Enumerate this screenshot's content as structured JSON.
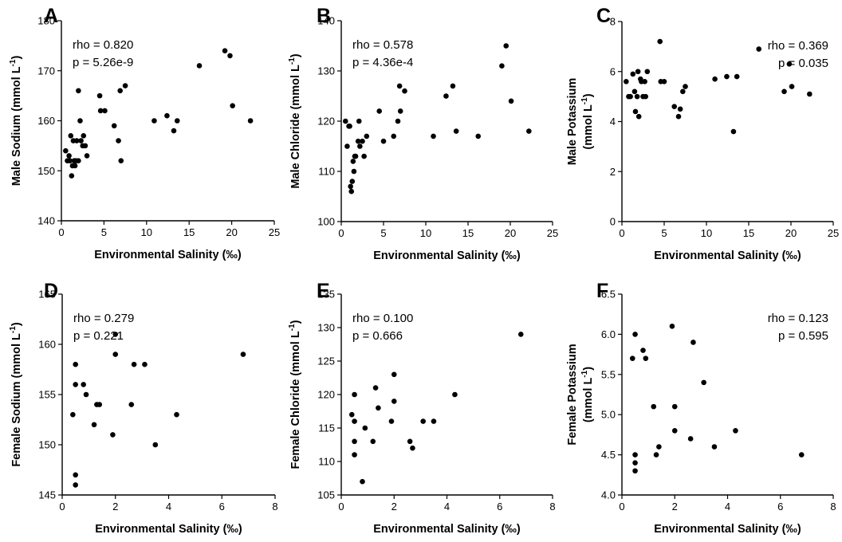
{
  "chart_data": [
    {
      "type": "scatter",
      "panel": "A",
      "xlabel": "Environmental Salinity (‰)",
      "ylabel": "Male Sodium (mmol L",
      "ylabel_sup": "-1",
      "ylabel_close": ")",
      "xlim": [
        0,
        25
      ],
      "ylim": [
        140,
        180
      ],
      "xticks": [
        0,
        5,
        10,
        15,
        20,
        25
      ],
      "yticks": [
        140,
        150,
        160,
        170,
        180
      ],
      "stats": [
        "rho = 0.820",
        "p = 5.26e-9"
      ],
      "stats_position": "top-left",
      "points": [
        [
          0.5,
          154
        ],
        [
          0.7,
          152
        ],
        [
          0.9,
          153
        ],
        [
          1.0,
          152
        ],
        [
          1.1,
          157
        ],
        [
          1.2,
          149
        ],
        [
          1.3,
          151
        ],
        [
          1.4,
          156
        ],
        [
          1.5,
          152
        ],
        [
          1.6,
          151
        ],
        [
          1.7,
          152
        ],
        [
          1.8,
          156
        ],
        [
          2.0,
          166
        ],
        [
          2.0,
          152
        ],
        [
          2.2,
          160
        ],
        [
          2.3,
          156
        ],
        [
          2.5,
          155
        ],
        [
          2.6,
          157
        ],
        [
          2.8,
          155
        ],
        [
          3.0,
          153
        ],
        [
          4.5,
          165
        ],
        [
          4.6,
          162
        ],
        [
          5.1,
          162
        ],
        [
          6.2,
          159
        ],
        [
          6.7,
          156
        ],
        [
          6.9,
          166
        ],
        [
          7.0,
          152
        ],
        [
          7.5,
          167
        ],
        [
          10.9,
          160
        ],
        [
          12.4,
          161
        ],
        [
          13.2,
          158
        ],
        [
          13.6,
          160
        ],
        [
          16.2,
          171
        ],
        [
          19.2,
          174
        ],
        [
          19.8,
          173
        ],
        [
          20.1,
          163
        ],
        [
          22.2,
          160
        ]
      ]
    },
    {
      "type": "scatter",
      "panel": "B",
      "xlabel": "Environmental Salinity (‰)",
      "ylabel": "Male Chloride (mmol L",
      "ylabel_sup": "-1",
      "ylabel_close": ")",
      "xlim": [
        0,
        25
      ],
      "ylim": [
        100,
        140
      ],
      "xticks": [
        0,
        5,
        10,
        15,
        20,
        25
      ],
      "yticks": [
        100,
        110,
        120,
        130,
        140
      ],
      "stats": [
        "rho = 0.578",
        "p = 4.36e-4"
      ],
      "stats_position": "top-left",
      "points": [
        [
          0.5,
          120
        ],
        [
          0.7,
          115
        ],
        [
          0.9,
          119
        ],
        [
          1.0,
          119
        ],
        [
          1.1,
          107
        ],
        [
          1.2,
          106
        ],
        [
          1.3,
          108
        ],
        [
          1.4,
          112
        ],
        [
          1.5,
          110
        ],
        [
          1.6,
          113
        ],
        [
          1.7,
          113
        ],
        [
          2.0,
          116
        ],
        [
          2.1,
          120
        ],
        [
          2.2,
          115
        ],
        [
          2.5,
          116
        ],
        [
          2.7,
          113
        ],
        [
          3.0,
          117
        ],
        [
          4.5,
          122
        ],
        [
          5.0,
          116
        ],
        [
          6.2,
          117
        ],
        [
          6.7,
          120
        ],
        [
          6.9,
          127
        ],
        [
          7.0,
          122
        ],
        [
          7.5,
          126
        ],
        [
          10.9,
          117
        ],
        [
          12.4,
          125
        ],
        [
          13.2,
          127
        ],
        [
          13.6,
          118
        ],
        [
          16.2,
          117
        ],
        [
          19.0,
          131
        ],
        [
          19.5,
          135
        ],
        [
          20.1,
          124
        ],
        [
          22.2,
          118
        ]
      ]
    },
    {
      "type": "scatter",
      "panel": "C",
      "xlabel": "Environmental Salinity (‰)",
      "ylabel": "Male Potassium",
      "ylabel2": "(mmol L",
      "ylabel_sup": "-1",
      "ylabel_close": ")",
      "xlim": [
        0,
        25
      ],
      "ylim": [
        0,
        8
      ],
      "xticks": [
        0,
        5,
        10,
        15,
        20,
        25
      ],
      "yticks": [
        0,
        2,
        4,
        6,
        8
      ],
      "stats": [
        "rho = 0.369",
        "p = 0.035"
      ],
      "stats_position": "top-right",
      "points": [
        [
          0.5,
          5.6
        ],
        [
          0.8,
          5.0
        ],
        [
          1.0,
          5.0
        ],
        [
          1.3,
          5.9
        ],
        [
          1.5,
          5.2
        ],
        [
          1.6,
          4.4
        ],
        [
          1.8,
          5.0
        ],
        [
          1.9,
          6.0
        ],
        [
          2.0,
          4.2
        ],
        [
          2.2,
          5.7
        ],
        [
          2.3,
          5.6
        ],
        [
          2.5,
          5.0
        ],
        [
          2.7,
          5.6
        ],
        [
          2.8,
          5.0
        ],
        [
          3.0,
          6.0
        ],
        [
          4.5,
          7.2
        ],
        [
          4.6,
          5.6
        ],
        [
          5.0,
          5.6
        ],
        [
          6.2,
          4.6
        ],
        [
          6.7,
          4.2
        ],
        [
          6.9,
          4.5
        ],
        [
          7.2,
          5.2
        ],
        [
          7.5,
          5.4
        ],
        [
          11.0,
          5.7
        ],
        [
          12.4,
          5.8
        ],
        [
          13.2,
          3.6
        ],
        [
          13.6,
          5.8
        ],
        [
          16.2,
          6.9
        ],
        [
          19.2,
          5.2
        ],
        [
          19.8,
          6.3
        ],
        [
          20.1,
          5.4
        ],
        [
          22.2,
          5.1
        ]
      ]
    },
    {
      "type": "scatter",
      "panel": "D",
      "xlabel": "Environmental Salinity (‰)",
      "ylabel": "Female Sodium (mmol L",
      "ylabel_sup": "-1",
      "ylabel_close": ")",
      "xlim": [
        0,
        8
      ],
      "ylim": [
        145,
        165
      ],
      "xticks": [
        0,
        2,
        4,
        6,
        8
      ],
      "yticks": [
        145,
        150,
        155,
        160,
        165
      ],
      "stats": [
        "rho = 0.279",
        "p = 0.221"
      ],
      "stats_position": "top-left",
      "points": [
        [
          0.4,
          153
        ],
        [
          0.5,
          158
        ],
        [
          0.5,
          156
        ],
        [
          0.5,
          147
        ],
        [
          0.5,
          146
        ],
        [
          0.8,
          156
        ],
        [
          0.9,
          155
        ],
        [
          1.2,
          152
        ],
        [
          1.3,
          154
        ],
        [
          1.4,
          154
        ],
        [
          1.9,
          151
        ],
        [
          2.0,
          161
        ],
        [
          2.0,
          159
        ],
        [
          2.6,
          154
        ],
        [
          2.7,
          158
        ],
        [
          3.1,
          158
        ],
        [
          3.5,
          150
        ],
        [
          4.3,
          153
        ],
        [
          6.8,
          159
        ]
      ]
    },
    {
      "type": "scatter",
      "panel": "E",
      "xlabel": "Environmental Salinity (‰)",
      "ylabel": "Female Chloride (mmol L",
      "ylabel_sup": "-1",
      "ylabel_close": ")",
      "xlim": [
        0,
        8
      ],
      "ylim": [
        105,
        135
      ],
      "xticks": [
        0,
        2,
        4,
        6,
        8
      ],
      "yticks": [
        105,
        110,
        115,
        120,
        125,
        130,
        135
      ],
      "stats": [
        "rho = 0.100",
        "p = 0.666"
      ],
      "stats_position": "top-left",
      "points": [
        [
          0.4,
          117
        ],
        [
          0.5,
          116
        ],
        [
          0.5,
          120
        ],
        [
          0.5,
          113
        ],
        [
          0.5,
          111
        ],
        [
          0.8,
          107
        ],
        [
          0.9,
          115
        ],
        [
          1.2,
          113
        ],
        [
          1.3,
          121
        ],
        [
          1.4,
          118
        ],
        [
          1.9,
          116
        ],
        [
          2.0,
          123
        ],
        [
          2.0,
          119
        ],
        [
          2.6,
          113
        ],
        [
          2.7,
          112
        ],
        [
          3.1,
          116
        ],
        [
          3.5,
          116
        ],
        [
          4.3,
          120
        ],
        [
          6.8,
          129
        ]
      ]
    },
    {
      "type": "scatter",
      "panel": "F",
      "xlabel": "Environmental Salinity (‰)",
      "ylabel": "Female Potassium",
      "ylabel2": "(mmol L",
      "ylabel_sup": "-1",
      "ylabel_close": ")",
      "xlim": [
        0,
        8
      ],
      "ylim": [
        4.0,
        6.5
      ],
      "xticks": [
        0,
        2,
        4,
        6,
        8
      ],
      "yticks": [
        4.0,
        4.5,
        5.0,
        5.5,
        6.0,
        6.5
      ],
      "ytick_labels": [
        "4.0",
        "4.5",
        "5.0",
        "5.5",
        "6.0",
        "6.5"
      ],
      "stats": [
        "rho = 0.123",
        "p = 0.595"
      ],
      "stats_position": "top-right",
      "points": [
        [
          0.4,
          5.7
        ],
        [
          0.5,
          6.0
        ],
        [
          0.5,
          4.5
        ],
        [
          0.5,
          4.4
        ],
        [
          0.5,
          4.3
        ],
        [
          0.8,
          5.8
        ],
        [
          0.9,
          5.7
        ],
        [
          1.2,
          5.1
        ],
        [
          1.3,
          4.5
        ],
        [
          1.4,
          4.6
        ],
        [
          1.9,
          6.1
        ],
        [
          2.0,
          5.1
        ],
        [
          2.0,
          4.8
        ],
        [
          2.6,
          4.7
        ],
        [
          2.7,
          5.9
        ],
        [
          3.1,
          5.4
        ],
        [
          3.5,
          4.6
        ],
        [
          4.3,
          4.8
        ],
        [
          6.8,
          4.5
        ]
      ]
    }
  ]
}
